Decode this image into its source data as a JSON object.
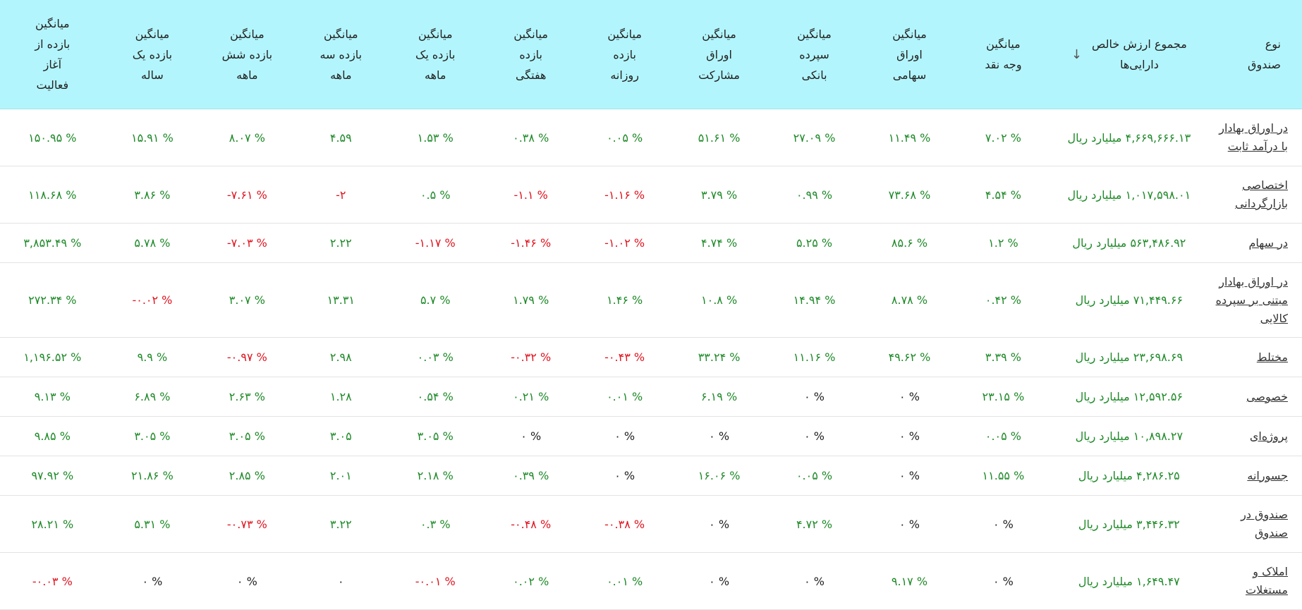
{
  "colors": {
    "header_bg": "#b3f5fc",
    "positive": "#1e8a28",
    "negative": "#e0141f",
    "neutral": "#222222"
  },
  "headers": {
    "type": [
      "نوع",
      "صندوق"
    ],
    "nav": [
      "مجموع ارزش خالص",
      "دارایی‌ها"
    ],
    "sort_icon": "arrow-down-icon",
    "cash": [
      "میانگین",
      "وجه نقد"
    ],
    "stocks": [
      "میانگین",
      "اوراق",
      "سهامی"
    ],
    "deposit": [
      "میانگین",
      "سپرده",
      "بانکی"
    ],
    "bonds": [
      "میانگین",
      "اوراق",
      "مشارکت"
    ],
    "daily": [
      "میانگین",
      "بازده",
      "روزانه"
    ],
    "weekly": [
      "میانگین",
      "بازده",
      "هفتگی"
    ],
    "monthly": [
      "میانگین",
      "بازده یک",
      "ماهه"
    ],
    "three_month": [
      "میانگین",
      "بازده سه",
      "ماهه"
    ],
    "six_month": [
      "میانگین",
      "بازده شش",
      "ماهه"
    ],
    "yearly": [
      "میانگین",
      "بازده یک",
      "ساله"
    ],
    "inception": [
      "میانگین",
      "بازده از",
      "آغاز",
      "فعالیت"
    ]
  },
  "rows": [
    {
      "type": [
        "در اوراق بهادار",
        "با درآمد ثابت"
      ],
      "h": "r2",
      "nav": "۴,۶۶۹,۶۶۶.۱۳ میلیارد ریال",
      "cash": "% ۷.۰۲",
      "stocks": "% ۱۱.۴۹",
      "deposit": "% ۲۷.۰۹",
      "bonds": "% ۵۱.۶۱",
      "daily": "% ۰.۰۵",
      "weekly": "% ۰.۳۸",
      "monthly": "% ۱.۵۳",
      "three_month": "۴.۵۹",
      "six_month": "% ۸.۰۷",
      "yearly": "% ۱۵.۹۱",
      "inception": "% ۱۵۰.۹۵",
      "signs": {
        "cash": "pos",
        "stocks": "pos",
        "deposit": "pos",
        "bonds": "pos",
        "daily": "pos",
        "weekly": "pos",
        "monthly": "pos",
        "three_month": "pos",
        "six_month": "pos",
        "yearly": "pos",
        "inception": "pos"
      }
    },
    {
      "type": [
        "اختصاصی",
        "بازارگردانی"
      ],
      "h": "r2",
      "nav": "۱,۰۱۷,۵۹۸.۰۱ میلیارد ریال",
      "cash": "% ۴.۵۴",
      "stocks": "% ۷۳.۶۸",
      "deposit": "% ۰.۹۹",
      "bonds": "% ۳.۷۹",
      "daily": "% ۱.۱۶-",
      "weekly": "% ۱.۱-",
      "monthly": "% ۰.۵",
      "three_month": "۲-",
      "six_month": "% ۷.۶۱-",
      "yearly": "% ۳.۸۶",
      "inception": "% ۱۱۸.۶۸",
      "signs": {
        "cash": "pos",
        "stocks": "pos",
        "deposit": "pos",
        "bonds": "pos",
        "daily": "neg",
        "weekly": "neg",
        "monthly": "pos",
        "three_month": "neg",
        "six_month": "neg",
        "yearly": "pos",
        "inception": "pos"
      }
    },
    {
      "type": [
        "در سهام"
      ],
      "h": "r1",
      "nav": "۵۶۳,۴۸۶.۹۲ میلیارد ریال",
      "cash": "% ۱.۲",
      "stocks": "% ۸۵.۶",
      "deposit": "% ۵.۲۵",
      "bonds": "% ۴.۷۴",
      "daily": "% ۱.۰۲-",
      "weekly": "% ۱.۴۶-",
      "monthly": "% ۱.۱۷-",
      "three_month": "۲.۲۲",
      "six_month": "% ۷.۰۳-",
      "yearly": "% ۵.۷۸",
      "inception": "% ۳,۸۵۳.۴۹",
      "signs": {
        "cash": "pos",
        "stocks": "pos",
        "deposit": "pos",
        "bonds": "pos",
        "daily": "neg",
        "weekly": "neg",
        "monthly": "neg",
        "three_month": "pos",
        "six_month": "neg",
        "yearly": "pos",
        "inception": "pos"
      }
    },
    {
      "type": [
        "در اوراق بهادار",
        "مبتنی بر سپرده",
        "کالایی"
      ],
      "h": "r3",
      "nav": "۷۱,۴۴۹.۶۶ میلیارد ریال",
      "cash": "% ۰.۴۲",
      "stocks": "% ۸.۷۸",
      "deposit": "% ۱۴.۹۴",
      "bonds": "% ۱۰.۸",
      "daily": "% ۱.۴۶",
      "weekly": "% ۱.۷۹",
      "monthly": "% ۵.۷",
      "three_month": "۱۳.۳۱",
      "six_month": "% ۳.۰۷",
      "yearly": "% ۰.۰۲-",
      "inception": "% ۲۷۲.۳۴",
      "signs": {
        "cash": "pos",
        "stocks": "pos",
        "deposit": "pos",
        "bonds": "pos",
        "daily": "pos",
        "weekly": "pos",
        "monthly": "pos",
        "three_month": "pos",
        "six_month": "pos",
        "yearly": "neg",
        "inception": "pos"
      }
    },
    {
      "type": [
        "مختلط"
      ],
      "h": "r1",
      "nav": "۲۳,۶۹۸.۶۹ میلیارد ریال",
      "cash": "% ۳.۳۹",
      "stocks": "% ۴۹.۶۲",
      "deposit": "% ۱۱.۱۶",
      "bonds": "% ۳۳.۲۴",
      "daily": "% ۰.۴۳-",
      "weekly": "% ۰.۳۲-",
      "monthly": "% ۰.۰۳",
      "three_month": "۲.۹۸",
      "six_month": "% ۰.۹۷-",
      "yearly": "% ۹.۹",
      "inception": "% ۱,۱۹۶.۵۲",
      "signs": {
        "cash": "pos",
        "stocks": "pos",
        "deposit": "pos",
        "bonds": "pos",
        "daily": "neg",
        "weekly": "neg",
        "monthly": "pos",
        "three_month": "pos",
        "six_month": "neg",
        "yearly": "pos",
        "inception": "pos"
      }
    },
    {
      "type": [
        "خصوصی"
      ],
      "h": "r1",
      "nav": "۱۲,۵۹۲.۵۶ میلیارد ریال",
      "cash": "% ۲۳.۱۵",
      "stocks": "% ۰",
      "deposit": "% ۰",
      "bonds": "% ۶.۱۹",
      "daily": "% ۰.۰۱",
      "weekly": "% ۰.۲۱",
      "monthly": "% ۰.۵۴",
      "three_month": "۱.۲۸",
      "six_month": "% ۲.۶۳",
      "yearly": "% ۶.۸۹",
      "inception": "% ۹.۱۳",
      "signs": {
        "cash": "pos",
        "stocks": "zero",
        "deposit": "zero",
        "bonds": "pos",
        "daily": "pos",
        "weekly": "pos",
        "monthly": "pos",
        "three_month": "pos",
        "six_month": "pos",
        "yearly": "pos",
        "inception": "pos"
      }
    },
    {
      "type": [
        "پروژه‌ای"
      ],
      "h": "r1",
      "nav": "۱۰,۸۹۸.۲۷ میلیارد ریال",
      "cash": "% ۰.۰۵",
      "stocks": "% ۰",
      "deposit": "% ۰",
      "bonds": "% ۰",
      "daily": "% ۰",
      "weekly": "% ۰",
      "monthly": "% ۳.۰۵",
      "three_month": "۳.۰۵",
      "six_month": "% ۳.۰۵",
      "yearly": "% ۳.۰۵",
      "inception": "% ۹.۸۵",
      "signs": {
        "cash": "pos",
        "stocks": "zero",
        "deposit": "zero",
        "bonds": "zero",
        "daily": "zero",
        "weekly": "zero",
        "monthly": "pos",
        "three_month": "pos",
        "six_month": "pos",
        "yearly": "pos",
        "inception": "pos"
      }
    },
    {
      "type": [
        "جسورانه"
      ],
      "h": "r1",
      "nav": "۴,۲۸۶.۲۵ میلیارد ریال",
      "cash": "% ۱۱.۵۵",
      "stocks": "% ۰",
      "deposit": "% ۰.۰۵",
      "bonds": "% ۱۶.۰۶",
      "daily": "% ۰",
      "weekly": "% ۰.۳۹",
      "monthly": "% ۲.۱۸",
      "three_month": "۲.۰۱",
      "six_month": "% ۲.۸۵",
      "yearly": "% ۲۱.۸۶",
      "inception": "% ۹۷.۹۲",
      "signs": {
        "cash": "pos",
        "stocks": "zero",
        "deposit": "pos",
        "bonds": "pos",
        "daily": "zero",
        "weekly": "pos",
        "monthly": "pos",
        "three_month": "pos",
        "six_month": "pos",
        "yearly": "pos",
        "inception": "pos"
      }
    },
    {
      "type": [
        "صندوق در",
        "صندوق"
      ],
      "h": "r2",
      "nav": "۳,۴۴۶.۳۲ میلیارد ریال",
      "cash": "% ۰",
      "stocks": "% ۰",
      "deposit": "% ۴.۷۲",
      "bonds": "% ۰",
      "daily": "% ۰.۳۸-",
      "weekly": "% ۰.۴۸-",
      "monthly": "% ۰.۳",
      "three_month": "۳.۲۲",
      "six_month": "% ۰.۷۳-",
      "yearly": "% ۵.۳۱",
      "inception": "% ۲۸.۲۱",
      "signs": {
        "cash": "zero",
        "stocks": "zero",
        "deposit": "pos",
        "bonds": "zero",
        "daily": "neg",
        "weekly": "neg",
        "monthly": "pos",
        "three_month": "pos",
        "six_month": "neg",
        "yearly": "pos",
        "inception": "pos"
      }
    },
    {
      "type": [
        "املاک و",
        "مستغلات"
      ],
      "h": "r2",
      "nav": "۱,۶۴۹.۴۷ میلیارد ریال",
      "cash": "% ۰",
      "stocks": "% ۹.۱۷",
      "deposit": "% ۰",
      "bonds": "% ۰",
      "daily": "% ۰.۰۱",
      "weekly": "% ۰.۰۲",
      "monthly": "% ۰.۰۱-",
      "three_month": "۰",
      "six_month": "% ۰",
      "yearly": "% ۰",
      "inception": "% ۰.۰۳-",
      "signs": {
        "cash": "zero",
        "stocks": "pos",
        "deposit": "zero",
        "bonds": "zero",
        "daily": "pos",
        "weekly": "pos",
        "monthly": "neg",
        "three_month": "zero",
        "six_month": "zero",
        "yearly": "zero",
        "inception": "neg"
      }
    }
  ]
}
